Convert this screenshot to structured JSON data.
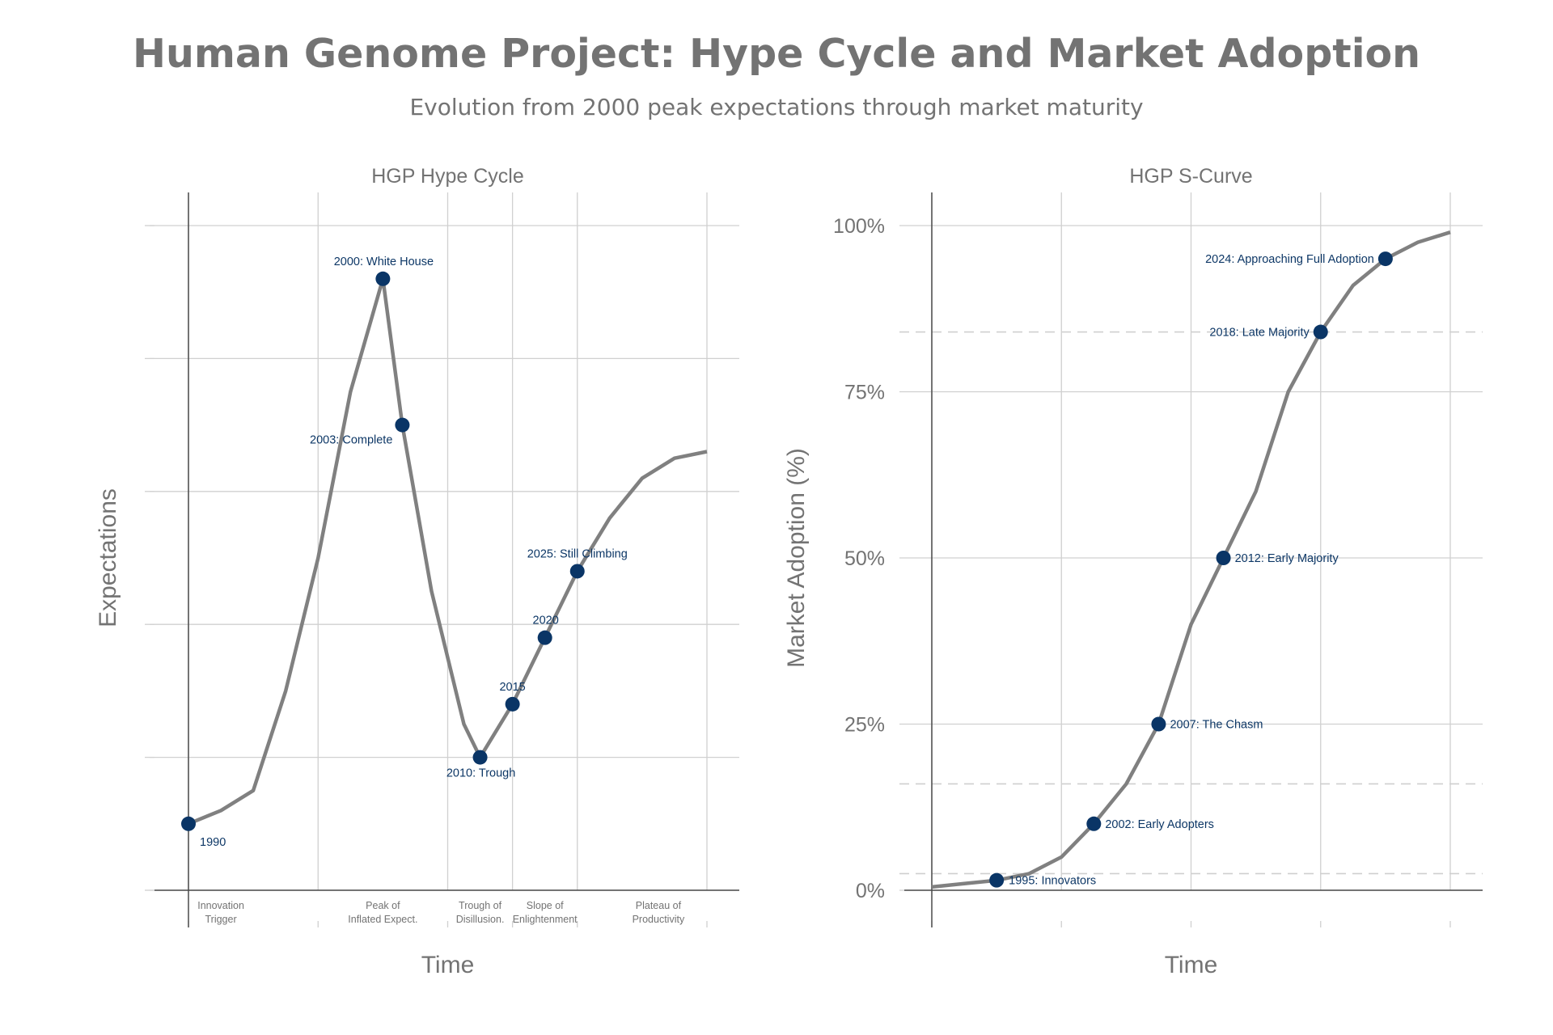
{
  "title": "Human Genome Project: Hype Cycle and Market Adoption",
  "subtitle": "Evolution from 2000 peak expectations through market maturity",
  "colors": {
    "curve": "#808080",
    "marker": "#0a3566",
    "annotation": "#0d3766",
    "text": "#737373"
  },
  "chart_data": [
    {
      "type": "line",
      "title": "HGP Hype Cycle",
      "xlabel": "Time",
      "ylabel": "Expectations",
      "xlim": [
        0,
        16
      ],
      "ylim": [
        0,
        100
      ],
      "grid": true,
      "x_ticks": [
        0,
        4,
        8,
        10,
        12,
        16
      ],
      "y_ticks": [
        0,
        20,
        40,
        60,
        80,
        100
      ],
      "phases": [
        {
          "label": [
            "Innovation",
            "Trigger"
          ],
          "x": 1
        },
        {
          "label": [
            "Peak of",
            "Inflated Expect."
          ],
          "x": 6
        },
        {
          "label": [
            "Trough of",
            "Disillusion."
          ],
          "x": 9
        },
        {
          "label": [
            "Slope of",
            "Enlightenment"
          ],
          "x": 11
        },
        {
          "label": [
            "Plateau of",
            "Productivity"
          ],
          "x": 14.5
        }
      ],
      "series": [
        {
          "x": [
            0,
            1,
            2,
            3,
            4,
            5,
            6,
            6.6,
            7.5,
            8.5,
            9,
            10,
            11,
            12,
            13,
            14,
            15,
            16
          ],
          "y": [
            10,
            12,
            15,
            30,
            50,
            75,
            92,
            70,
            45,
            25,
            20,
            28,
            38,
            48,
            56,
            62,
            65,
            66
          ]
        }
      ],
      "highlights": [
        {
          "x": 0,
          "y": 10,
          "label": "1990"
        },
        {
          "x": 6,
          "y": 92,
          "label": "2000: White House"
        },
        {
          "x": 6.6,
          "y": 70,
          "label": "2003: Complete"
        },
        {
          "x": 9,
          "y": 20,
          "label": "2010: Trough"
        },
        {
          "x": 10,
          "y": 28,
          "label": "2015"
        },
        {
          "x": 11,
          "y": 38,
          "label": "2020"
        },
        {
          "x": 12,
          "y": 48,
          "label": "2025: Still Climbing"
        }
      ]
    },
    {
      "type": "line",
      "title": "HGP S-Curve",
      "xlabel": "Time",
      "ylabel": "Market Adoption (%)",
      "xlim": [
        0,
        16
      ],
      "ylim": [
        0,
        100
      ],
      "grid": true,
      "x_ticks": [
        0,
        4,
        8,
        12,
        16
      ],
      "y_ticks": [
        0,
        25,
        50,
        75,
        100
      ],
      "y_tick_labels": [
        "0%",
        "25%",
        "50%",
        "75%",
        "100%"
      ],
      "dashed_levels": [
        2.5,
        16,
        84
      ],
      "series": [
        {
          "x": [
            0,
            1,
            2,
            3,
            4,
            5,
            6,
            7,
            8,
            9,
            10,
            11,
            12,
            13,
            14,
            15,
            16
          ],
          "y": [
            0.5,
            1,
            1.5,
            2.5,
            5,
            10,
            16,
            25,
            40,
            50,
            60,
            75,
            84,
            91,
            95,
            97.5,
            99
          ]
        }
      ],
      "highlights": [
        {
          "x": 2,
          "y": 1.5,
          "label": "1995: Innovators"
        },
        {
          "x": 5,
          "y": 10,
          "label": "2002: Early Adopters"
        },
        {
          "x": 7,
          "y": 25,
          "label": "2007: The Chasm"
        },
        {
          "x": 9,
          "y": 50,
          "label": "2012: Early Majority"
        },
        {
          "x": 12,
          "y": 84,
          "label": "2018: Late Majority"
        },
        {
          "x": 14,
          "y": 95,
          "label": "2024: Approaching Full Adoption"
        }
      ]
    }
  ]
}
